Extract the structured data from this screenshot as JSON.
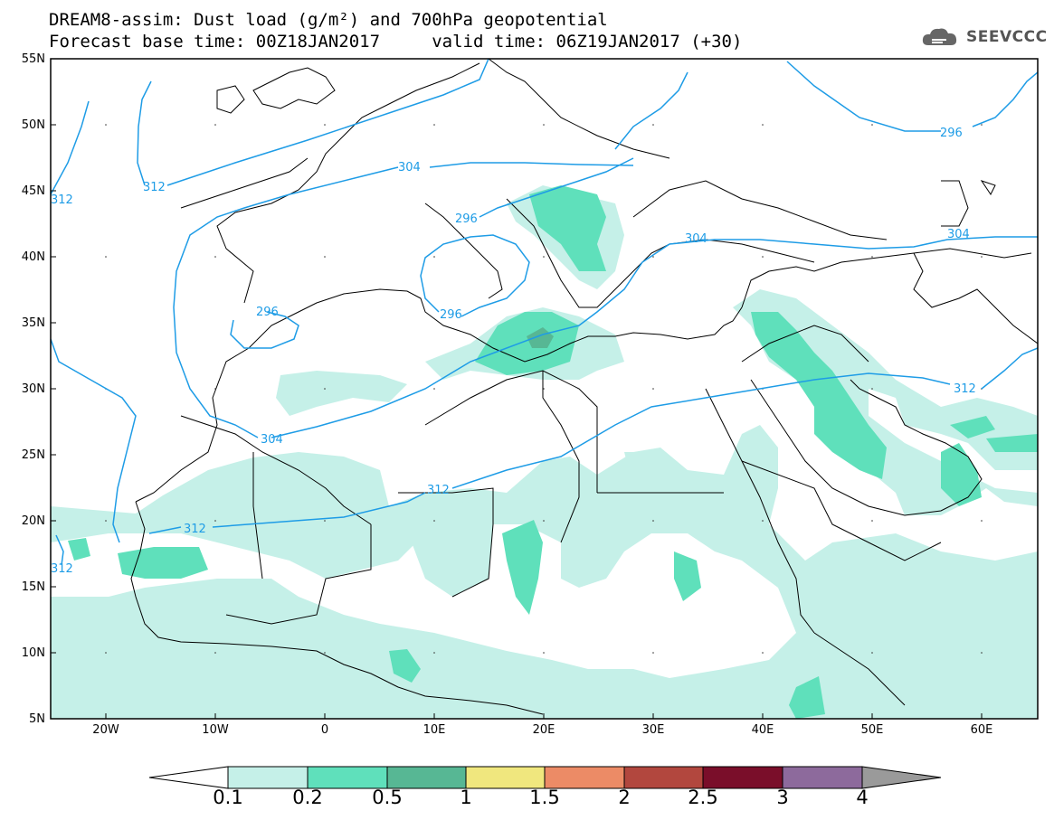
{
  "header": {
    "title_line1": "DREAM8-assim: Dust load (g/m²) and 700hPa geopotential",
    "title_line2": "Forecast base time: 00Z18JAN2017     valid time: 06Z19JAN2017 (+30)"
  },
  "logo": {
    "text": "SEEVCCC",
    "icon": "cloud-icon"
  },
  "axes": {
    "lat_labels": [
      "55N",
      "50N",
      "45N",
      "40N",
      "35N",
      "30N",
      "25N",
      "20N",
      "15N",
      "10N",
      "5N"
    ],
    "lon_labels": [
      "20W",
      "10W",
      "0",
      "10E",
      "20E",
      "30E",
      "40E",
      "50E",
      "60E"
    ],
    "lat_range": [
      5,
      55
    ],
    "lon_range": [
      -25,
      65
    ]
  },
  "contours": {
    "labels": [
      "312",
      "304",
      "296",
      "296",
      "296",
      "304",
      "304",
      "296",
      "312",
      "304",
      "312",
      "312",
      "312",
      "312"
    ],
    "color": "#1e9ce6"
  },
  "colorbar": {
    "labels": [
      "0.1",
      "0.2",
      "0.5",
      "1",
      "1.5",
      "2",
      "2.5",
      "3",
      "4"
    ],
    "colors": [
      "#c5f0e8",
      "#5fe0bb",
      "#57b794",
      "#f0e77e",
      "#ec8b66",
      "#b2473e",
      "#7a0e2a",
      "#8d6a9c"
    ],
    "under_color": "#ffffff",
    "over_color": "#9a9a9a",
    "units": "g/m²"
  }
}
